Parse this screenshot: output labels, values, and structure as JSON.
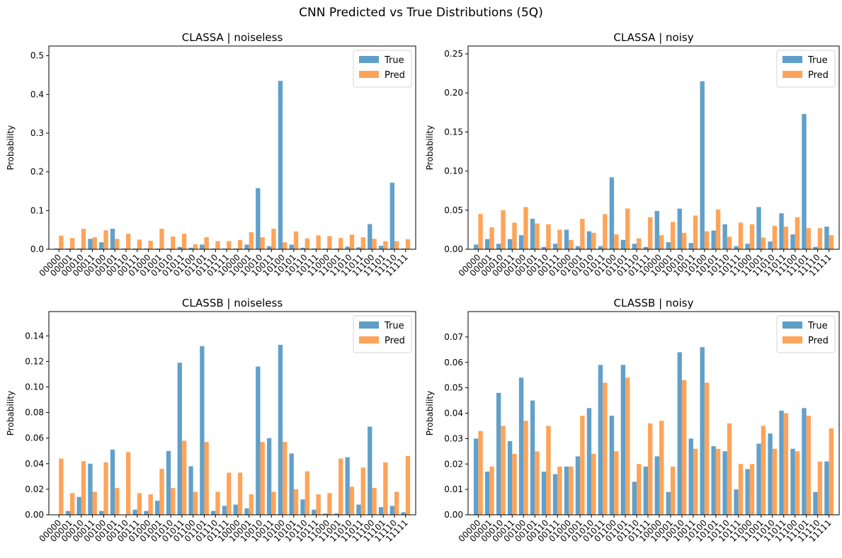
{
  "figure": {
    "title": "CNN Predicted vs True Distributions (5Q)"
  },
  "colors": {
    "true": "#5f9ec9",
    "pred": "#fea45a"
  },
  "chart_data": [
    {
      "type": "bar",
      "title": "CLASSA | noiseless",
      "ylabel": "Probability",
      "ylim": [
        0,
        0.525
      ],
      "yticks": [
        0.0,
        0.1,
        0.2,
        0.3,
        0.4,
        0.5
      ],
      "tick_decimals": 1,
      "legend": "top-right",
      "categories": [
        "00000",
        "00001",
        "00010",
        "00011",
        "00100",
        "00101",
        "00110",
        "00111",
        "01000",
        "01001",
        "01010",
        "01011",
        "01100",
        "01101",
        "01110",
        "01111",
        "10000",
        "10001",
        "10010",
        "10011",
        "10100",
        "10101",
        "10110",
        "10111",
        "11000",
        "11001",
        "11010",
        "11011",
        "11100",
        "11101",
        "11110",
        "11111"
      ],
      "series": [
        {
          "name": "True",
          "values": [
            0.002,
            0.002,
            0.002,
            0.027,
            0.018,
            0.053,
            0.002,
            0.002,
            0.002,
            0.002,
            0.002,
            0.006,
            0.004,
            0.012,
            0.002,
            0.002,
            0.002,
            0.012,
            0.158,
            0.008,
            0.435,
            0.012,
            0.004,
            0.002,
            0.002,
            0.002,
            0.007,
            0.005,
            0.065,
            0.009,
            0.172,
            0.002
          ]
        },
        {
          "name": "Pred",
          "values": [
            0.035,
            0.029,
            0.053,
            0.031,
            0.049,
            0.027,
            0.04,
            0.025,
            0.022,
            0.053,
            0.033,
            0.04,
            0.013,
            0.031,
            0.021,
            0.021,
            0.024,
            0.044,
            0.031,
            0.053,
            0.018,
            0.046,
            0.028,
            0.036,
            0.034,
            0.029,
            0.038,
            0.031,
            0.027,
            0.021,
            0.021,
            0.026
          ]
        }
      ]
    },
    {
      "type": "bar",
      "title": "CLASSA | noisy",
      "ylabel": "Probability",
      "ylim": [
        0,
        0.26
      ],
      "yticks": [
        0.0,
        0.05,
        0.1,
        0.15,
        0.2,
        0.25
      ],
      "tick_decimals": 2,
      "legend": "top-right",
      "categories": [
        "00000",
        "00001",
        "00010",
        "00011",
        "00100",
        "00101",
        "00110",
        "00111",
        "01000",
        "01001",
        "01010",
        "01011",
        "01100",
        "01101",
        "01110",
        "01111",
        "10000",
        "10001",
        "10010",
        "10011",
        "10100",
        "10101",
        "10110",
        "10111",
        "11000",
        "11001",
        "11010",
        "11011",
        "11100",
        "11101",
        "11110",
        "11111"
      ],
      "series": [
        {
          "name": "True",
          "values": [
            0.006,
            0.013,
            0.007,
            0.013,
            0.018,
            0.039,
            0.003,
            0.007,
            0.025,
            0.004,
            0.023,
            0.004,
            0.092,
            0.012,
            0.007,
            0.003,
            0.049,
            0.009,
            0.052,
            0.008,
            0.215,
            0.024,
            0.032,
            0.004,
            0.007,
            0.054,
            0.01,
            0.046,
            0.019,
            0.173,
            0.003,
            0.029
          ]
        },
        {
          "name": "Pred",
          "values": [
            0.045,
            0.028,
            0.05,
            0.034,
            0.054,
            0.033,
            0.032,
            0.025,
            0.012,
            0.039,
            0.021,
            0.045,
            0.019,
            0.052,
            0.014,
            0.041,
            0.018,
            0.035,
            0.021,
            0.043,
            0.023,
            0.051,
            0.016,
            0.034,
            0.032,
            0.015,
            0.03,
            0.029,
            0.041,
            0.027,
            0.027,
            0.018
          ]
        }
      ]
    },
    {
      "type": "bar",
      "title": "CLASSB | noiseless",
      "ylabel": "Probability",
      "ylim": [
        0,
        0.159
      ],
      "yticks": [
        0.0,
        0.02,
        0.04,
        0.06,
        0.08,
        0.1,
        0.12,
        0.14
      ],
      "tick_decimals": 2,
      "legend": "top-right",
      "categories": [
        "00000",
        "00001",
        "00010",
        "00011",
        "00100",
        "00101",
        "00110",
        "00111",
        "01000",
        "01001",
        "01010",
        "01011",
        "01100",
        "01101",
        "01110",
        "01111",
        "10000",
        "10001",
        "10010",
        "10011",
        "10100",
        "10101",
        "10110",
        "10111",
        "11000",
        "11001",
        "11010",
        "11011",
        "11100",
        "11101",
        "11110",
        "11111"
      ],
      "series": [
        {
          "name": "True",
          "values": [
            0.0,
            0.003,
            0.014,
            0.04,
            0.003,
            0.051,
            0.0,
            0.004,
            0.003,
            0.011,
            0.05,
            0.119,
            0.038,
            0.132,
            0.003,
            0.007,
            0.008,
            0.005,
            0.116,
            0.06,
            0.133,
            0.048,
            0.012,
            0.004,
            0.001,
            0.001,
            0.045,
            0.008,
            0.069,
            0.006,
            0.007,
            0.002
          ]
        },
        {
          "name": "Pred",
          "values": [
            0.044,
            0.017,
            0.042,
            0.018,
            0.041,
            0.021,
            0.049,
            0.017,
            0.016,
            0.036,
            0.021,
            0.058,
            0.018,
            0.057,
            0.018,
            0.033,
            0.033,
            0.016,
            0.057,
            0.018,
            0.057,
            0.02,
            0.034,
            0.016,
            0.017,
            0.044,
            0.022,
            0.037,
            0.021,
            0.041,
            0.018,
            0.046
          ]
        }
      ]
    },
    {
      "type": "bar",
      "title": "CLASSB | noisy",
      "ylabel": "Probability",
      "ylim": [
        0,
        0.08
      ],
      "yticks": [
        0.0,
        0.01,
        0.02,
        0.03,
        0.04,
        0.05,
        0.06,
        0.07
      ],
      "tick_decimals": 2,
      "legend": "top-right",
      "categories": [
        "00000",
        "00001",
        "00010",
        "00011",
        "00100",
        "00101",
        "00110",
        "00111",
        "01000",
        "01001",
        "01010",
        "01011",
        "01100",
        "01101",
        "01110",
        "01111",
        "10000",
        "10001",
        "10010",
        "10011",
        "10100",
        "10101",
        "10110",
        "10111",
        "11000",
        "11001",
        "11010",
        "11011",
        "11100",
        "11101",
        "11110",
        "11111"
      ],
      "series": [
        {
          "name": "True",
          "values": [
            0.03,
            0.017,
            0.048,
            0.029,
            0.054,
            0.045,
            0.017,
            0.016,
            0.019,
            0.023,
            0.042,
            0.059,
            0.039,
            0.059,
            0.013,
            0.019,
            0.023,
            0.009,
            0.064,
            0.03,
            0.066,
            0.027,
            0.025,
            0.01,
            0.018,
            0.028,
            0.032,
            0.041,
            0.026,
            0.042,
            0.009,
            0.021
          ]
        },
        {
          "name": "Pred",
          "values": [
            0.033,
            0.019,
            0.035,
            0.024,
            0.037,
            0.025,
            0.035,
            0.019,
            0.019,
            0.039,
            0.024,
            0.052,
            0.025,
            0.054,
            0.02,
            0.036,
            0.037,
            0.019,
            0.053,
            0.026,
            0.052,
            0.026,
            0.036,
            0.02,
            0.02,
            0.035,
            0.026,
            0.04,
            0.025,
            0.039,
            0.021,
            0.034
          ]
        }
      ]
    }
  ]
}
